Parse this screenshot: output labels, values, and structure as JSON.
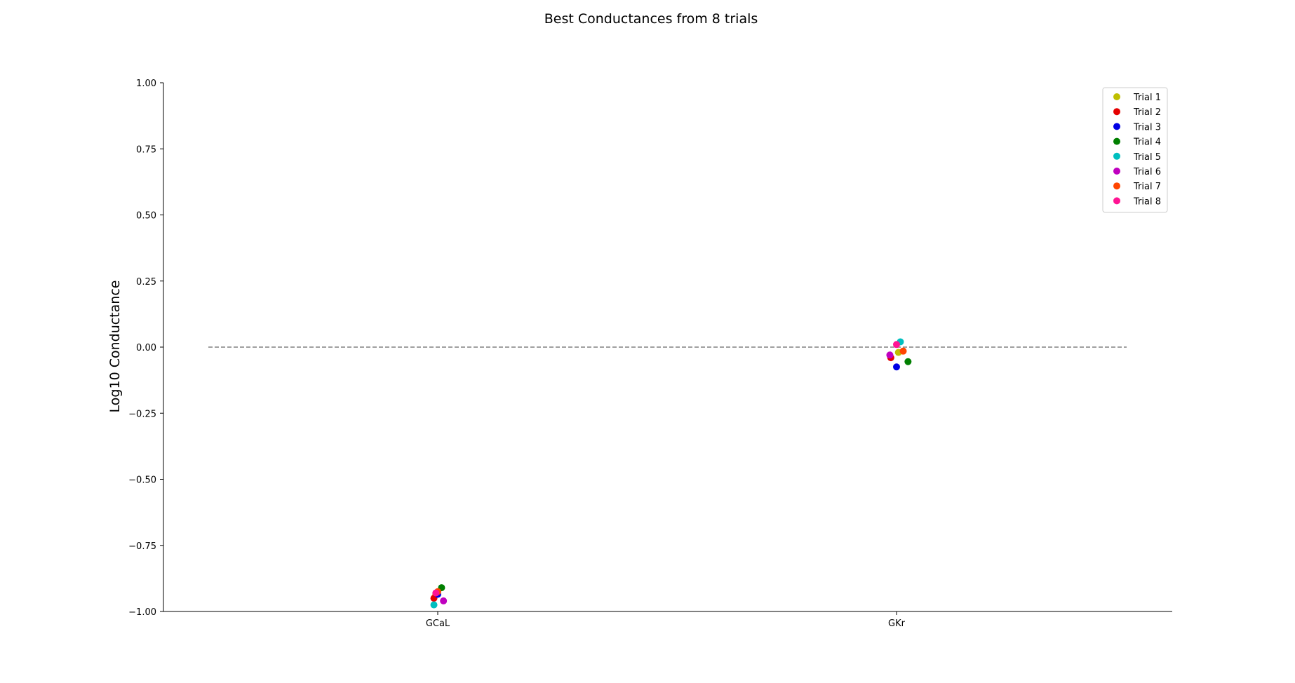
{
  "chart_data": {
    "type": "scatter",
    "title": "Best Conductances from 8 trials",
    "xlabel": "",
    "ylabel": "Log10 Conductance",
    "categories": [
      "GCaL",
      "GKr"
    ],
    "ylim": [
      -1.0,
      1.0
    ],
    "yticks": [
      "1.00",
      "0.75",
      "0.50",
      "0.25",
      "0.00",
      "−0.25",
      "−0.50",
      "−0.75",
      "−1.00"
    ],
    "ytick_values": [
      1.0,
      0.75,
      0.5,
      0.25,
      0.0,
      -0.25,
      -0.5,
      -0.75,
      -1.0
    ],
    "reference_line": {
      "y": 0.0,
      "style": "dashed",
      "color": "#808080"
    },
    "grid": false,
    "legend_position": "top-right",
    "series": [
      {
        "name": "Trial 1",
        "color": "#bfbf00",
        "points": [
          {
            "category": "GCaL",
            "offset": -0.01,
            "y": -0.935
          },
          {
            "category": "GKr",
            "offset": 0.01,
            "y": -0.02
          }
        ]
      },
      {
        "name": "Trial 2",
        "color": "#e50000",
        "points": [
          {
            "category": "GCaL",
            "offset": -0.02,
            "y": -0.95
          },
          {
            "category": "GKr",
            "offset": -0.03,
            "y": -0.04
          }
        ]
      },
      {
        "name": "Trial 3",
        "color": "#0000e5",
        "points": [
          {
            "category": "GCaL",
            "offset": 0.0,
            "y": -0.935
          },
          {
            "category": "GKr",
            "offset": 0.0,
            "y": -0.075
          }
        ]
      },
      {
        "name": "Trial 4",
        "color": "#007f00",
        "points": [
          {
            "category": "GCaL",
            "offset": 0.02,
            "y": -0.91
          },
          {
            "category": "GKr",
            "offset": 0.06,
            "y": -0.055
          }
        ]
      },
      {
        "name": "Trial 5",
        "color": "#00bfbf",
        "points": [
          {
            "category": "GCaL",
            "offset": -0.02,
            "y": -0.975
          },
          {
            "category": "GKr",
            "offset": 0.02,
            "y": 0.02
          }
        ]
      },
      {
        "name": "Trial 6",
        "color": "#bf00bf",
        "points": [
          {
            "category": "GCaL",
            "offset": 0.03,
            "y": -0.96
          },
          {
            "category": "GKr",
            "offset": -0.035,
            "y": -0.03
          }
        ]
      },
      {
        "name": "Trial 7",
        "color": "#ff4500",
        "points": [
          {
            "category": "GCaL",
            "offset": 0.0,
            "y": -0.925
          },
          {
            "category": "GKr",
            "offset": 0.035,
            "y": -0.015
          }
        ]
      },
      {
        "name": "Trial 8",
        "color": "#ff1493",
        "points": [
          {
            "category": "GCaL",
            "offset": -0.01,
            "y": -0.93
          },
          {
            "category": "GKr",
            "offset": 0.0,
            "y": 0.01
          }
        ]
      }
    ]
  }
}
